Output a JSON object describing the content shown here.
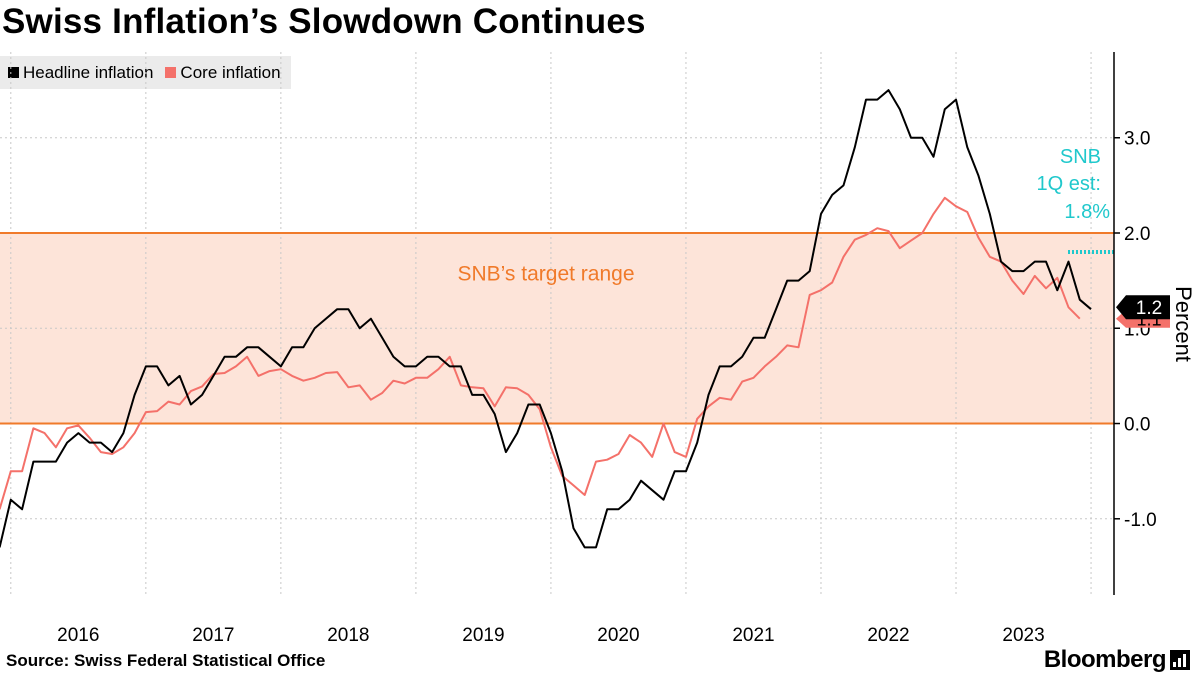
{
  "title": "Swiss Inflation’s Slowdown Continues",
  "source": "Source: Swiss Federal Statistical Office",
  "brand": "Bloomberg",
  "brand_icon": "bar-chart-icon",
  "colors": {
    "headline": "#000000",
    "core": "#f4716a",
    "band_fill": "#fde4d9",
    "band_line": "#f07a2a",
    "band_label": "#f07a2a",
    "snb_est": "#20c8cc",
    "grid": "#c8c8c8",
    "axis": "#000000"
  },
  "chart_data": {
    "type": "line",
    "title": "Swiss Inflation’s Slowdown Continues",
    "ylabel": "Percent",
    "xlabel": "",
    "ylim": [
      -1.8,
      3.9
    ],
    "xlim": [
      2015.92,
      2024.17
    ],
    "yticks": [
      -1.0,
      0.0,
      1.0,
      2.0,
      3.0
    ],
    "ytick_labels": [
      "-1.0",
      "0.0",
      "1.0",
      "2.0",
      "3.0"
    ],
    "xticks": [
      2016,
      2017,
      2018,
      2019,
      2020,
      2021,
      2022,
      2023
    ],
    "xtick_labels": [
      "2016",
      "2017",
      "2018",
      "2019",
      "2020",
      "2021",
      "2022",
      "2023"
    ],
    "x_start": 2015.917,
    "x_step": 0.08333,
    "grid": true,
    "legend_position": "top-left",
    "series": [
      {
        "name": "Headline inflation",
        "values": [
          -1.3,
          -0.8,
          -0.9,
          -0.4,
          -0.4,
          -0.4,
          -0.2,
          -0.1,
          -0.2,
          -0.2,
          -0.3,
          -0.1,
          0.3,
          0.6,
          0.6,
          0.4,
          0.5,
          0.2,
          0.3,
          0.5,
          0.7,
          0.7,
          0.8,
          0.8,
          0.7,
          0.6,
          0.8,
          0.8,
          1.0,
          1.1,
          1.2,
          1.2,
          1.0,
          1.1,
          0.9,
          0.7,
          0.6,
          0.6,
          0.7,
          0.7,
          0.6,
          0.6,
          0.3,
          0.3,
          0.1,
          -0.3,
          -0.1,
          0.2,
          0.2,
          -0.1,
          -0.5,
          -1.1,
          -1.3,
          -1.3,
          -0.9,
          -0.9,
          -0.8,
          -0.6,
          -0.7,
          -0.8,
          -0.5,
          -0.5,
          -0.2,
          0.3,
          0.6,
          0.6,
          0.7,
          0.9,
          0.9,
          1.2,
          1.5,
          1.5,
          1.6,
          2.2,
          2.4,
          2.5,
          2.9,
          3.4,
          3.4,
          3.5,
          3.3,
          3.0,
          3.0,
          2.8,
          3.3,
          3.4,
          2.9,
          2.6,
          2.2,
          1.7,
          1.6,
          1.6,
          1.7,
          1.7,
          1.4,
          1.7,
          1.3,
          1.2
        ],
        "end_label": "1.2"
      },
      {
        "name": "Core inflation",
        "values": [
          -0.9,
          -0.5,
          -0.5,
          -0.05,
          -0.1,
          -0.25,
          -0.05,
          -0.02,
          -0.15,
          -0.3,
          -0.32,
          -0.25,
          -0.1,
          0.12,
          0.13,
          0.23,
          0.2,
          0.34,
          0.39,
          0.52,
          0.53,
          0.6,
          0.7,
          0.5,
          0.55,
          0.57,
          0.5,
          0.45,
          0.48,
          0.53,
          0.54,
          0.38,
          0.4,
          0.25,
          0.32,
          0.45,
          0.42,
          0.48,
          0.48,
          0.57,
          0.7,
          0.4,
          0.38,
          0.37,
          0.18,
          0.38,
          0.37,
          0.3,
          0.15,
          -0.25,
          -0.55,
          -0.65,
          -0.75,
          -0.4,
          -0.38,
          -0.32,
          -0.12,
          -0.2,
          -0.35,
          0.0,
          -0.3,
          -0.35,
          0.05,
          0.18,
          0.27,
          0.25,
          0.44,
          0.48,
          0.6,
          0.7,
          0.82,
          0.8,
          1.35,
          1.4,
          1.48,
          1.75,
          1.93,
          1.98,
          2.05,
          2.02,
          1.84,
          1.92,
          2.0,
          2.2,
          2.37,
          2.28,
          2.22,
          1.95,
          1.75,
          1.7,
          1.5,
          1.36,
          1.55,
          1.42,
          1.53,
          1.22,
          1.1
        ],
        "end_label": "1.1"
      }
    ],
    "target_range": {
      "low": 0.0,
      "high": 2.0,
      "label": "SNB’s target range"
    },
    "snb_estimate": {
      "value": 1.8,
      "line1": "SNB",
      "line2": "1Q est:",
      "line3": "1.8%"
    }
  }
}
